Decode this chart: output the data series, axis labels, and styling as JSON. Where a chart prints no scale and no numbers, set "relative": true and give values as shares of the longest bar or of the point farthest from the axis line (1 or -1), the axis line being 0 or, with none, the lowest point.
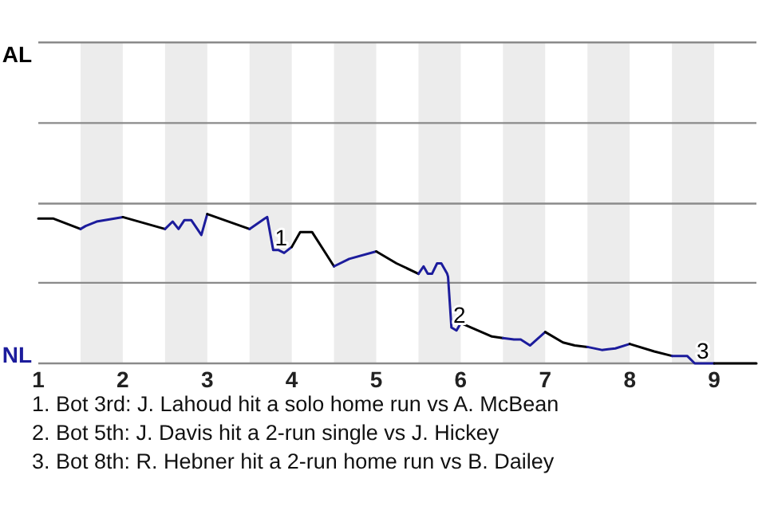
{
  "chart_data": {
    "type": "line",
    "relative": true,
    "xlim": [
      1,
      9.5
    ],
    "xticks": [
      1,
      2,
      3,
      4,
      5,
      6,
      7,
      8,
      9
    ],
    "marker": "none",
    "line_style": "solid",
    "ref_lines": [
      {
        "axis": "y",
        "value": 0.54,
        "color": "#8a8a8a"
      },
      {
        "axis": "y",
        "value": 1.07,
        "color": "#8a8a8a"
      },
      {
        "axis": "y",
        "value": 1.61,
        "color": "#8a8a8a"
      },
      {
        "axis": "y",
        "value": 2.15,
        "color": "#8a8a8a"
      }
    ],
    "bands": [
      {
        "axis": "x",
        "from": 1.5,
        "to": 2,
        "color": "#ececec"
      },
      {
        "axis": "x",
        "from": 2.5,
        "to": 3,
        "color": "#ececec"
      },
      {
        "axis": "x",
        "from": 3.5,
        "to": 4,
        "color": "#ececec"
      },
      {
        "axis": "x",
        "from": 4.5,
        "to": 5,
        "color": "#ececec"
      },
      {
        "axis": "x",
        "from": 5.5,
        "to": 6,
        "color": "#ececec"
      },
      {
        "axis": "x",
        "from": 6.5,
        "to": 7,
        "color": "#ececec"
      },
      {
        "axis": "x",
        "from": 7.5,
        "to": 8,
        "color": "#ececec"
      },
      {
        "axis": "x",
        "from": 8.5,
        "to": 9,
        "color": "#ececec"
      }
    ],
    "series": [
      {
        "color": "#000000",
        "x": [
          1,
          1.18,
          1.5
        ],
        "values": [
          0.97,
          0.97,
          0.9
        ]
      },
      {
        "color": "#1c1c9c",
        "x": [
          1.5,
          1.56,
          1.69,
          2
        ],
        "values": [
          0.9,
          0.92,
          0.95,
          0.98
        ]
      },
      {
        "color": "#000000",
        "x": [
          2,
          2.5
        ],
        "values": [
          0.98,
          0.9
        ]
      },
      {
        "color": "#1c1c9c",
        "x": [
          2.5,
          2.59,
          2.66,
          2.73,
          2.81,
          2.93,
          3
        ],
        "values": [
          0.9,
          0.95,
          0.9,
          0.96,
          0.96,
          0.86,
          1
        ]
      },
      {
        "color": "#000000",
        "x": [
          3,
          3.5
        ],
        "values": [
          1,
          0.9
        ]
      },
      {
        "color": "#1c1c9c",
        "x": [
          3.5,
          3.68,
          3.71,
          3.78,
          3.84,
          3.91,
          4
        ],
        "values": [
          0.9,
          0.97,
          0.98,
          0.76,
          0.76,
          0.74,
          0.78
        ]
      },
      {
        "color": "#000000",
        "x": [
          4,
          4.1,
          4.24,
          4.41,
          4.5
        ],
        "values": [
          0.78,
          0.88,
          0.88,
          0.73,
          0.65
        ]
      },
      {
        "color": "#1c1c9c",
        "x": [
          4.5,
          4.68,
          5
        ],
        "values": [
          0.65,
          0.7,
          0.75
        ]
      },
      {
        "color": "#000000",
        "x": [
          5,
          5.24,
          5.5
        ],
        "values": [
          0.75,
          0.67,
          0.6
        ]
      },
      {
        "color": "#1c1c9c",
        "x": [
          5.5,
          5.56,
          5.61,
          5.66,
          5.72,
          5.77,
          5.84,
          5.85,
          5.89,
          5.95,
          6
        ],
        "values": [
          0.6,
          0.65,
          0.6,
          0.6,
          0.67,
          0.67,
          0.6,
          0.58,
          0.24,
          0.22,
          0.27
        ]
      },
      {
        "color": "#000000",
        "x": [
          6,
          6.37,
          6.5
        ],
        "values": [
          0.27,
          0.18,
          0.17
        ]
      },
      {
        "color": "#1c1c9c",
        "x": [
          6.5,
          6.63,
          6.71,
          6.82,
          7
        ],
        "values": [
          0.17,
          0.16,
          0.16,
          0.12,
          0.21
        ]
      },
      {
        "color": "#000000",
        "x": [
          7,
          7.21,
          7.35,
          7.5
        ],
        "values": [
          0.21,
          0.14,
          0.12,
          0.11
        ]
      },
      {
        "color": "#1c1c9c",
        "x": [
          7.5,
          7.67,
          7.83,
          8
        ],
        "values": [
          0.11,
          0.09,
          0.1,
          0.13
        ]
      },
      {
        "color": "#000000",
        "x": [
          8,
          8.29,
          8.5
        ],
        "values": [
          0.13,
          0.08,
          0.05
        ]
      },
      {
        "color": "#1c1c9c",
        "x": [
          8.5,
          8.68,
          8.77,
          9
        ],
        "values": [
          0.05,
          0.05,
          0,
          0
        ]
      },
      {
        "color": "#000000",
        "x": [
          9,
          9.5
        ],
        "values": [
          0,
          0
        ]
      }
    ],
    "annotations": [
      {
        "text": "1",
        "x": 3.78,
        "y": 0.76
      },
      {
        "text": "2",
        "x": 5.89,
        "y": 0.24
      },
      {
        "text": "3",
        "x": 8.77,
        "y": 0
      },
      "AL",
      "NL",
      "1. Bot 3rd: J. Lahoud hit a solo home run vs A. McBean",
      "2. Bot 5th: J. Davis hit a 2-run single vs J. Hickey",
      "3. Bot 8th: R. Hebner hit a 2-run home run vs B. Dailey"
    ]
  }
}
